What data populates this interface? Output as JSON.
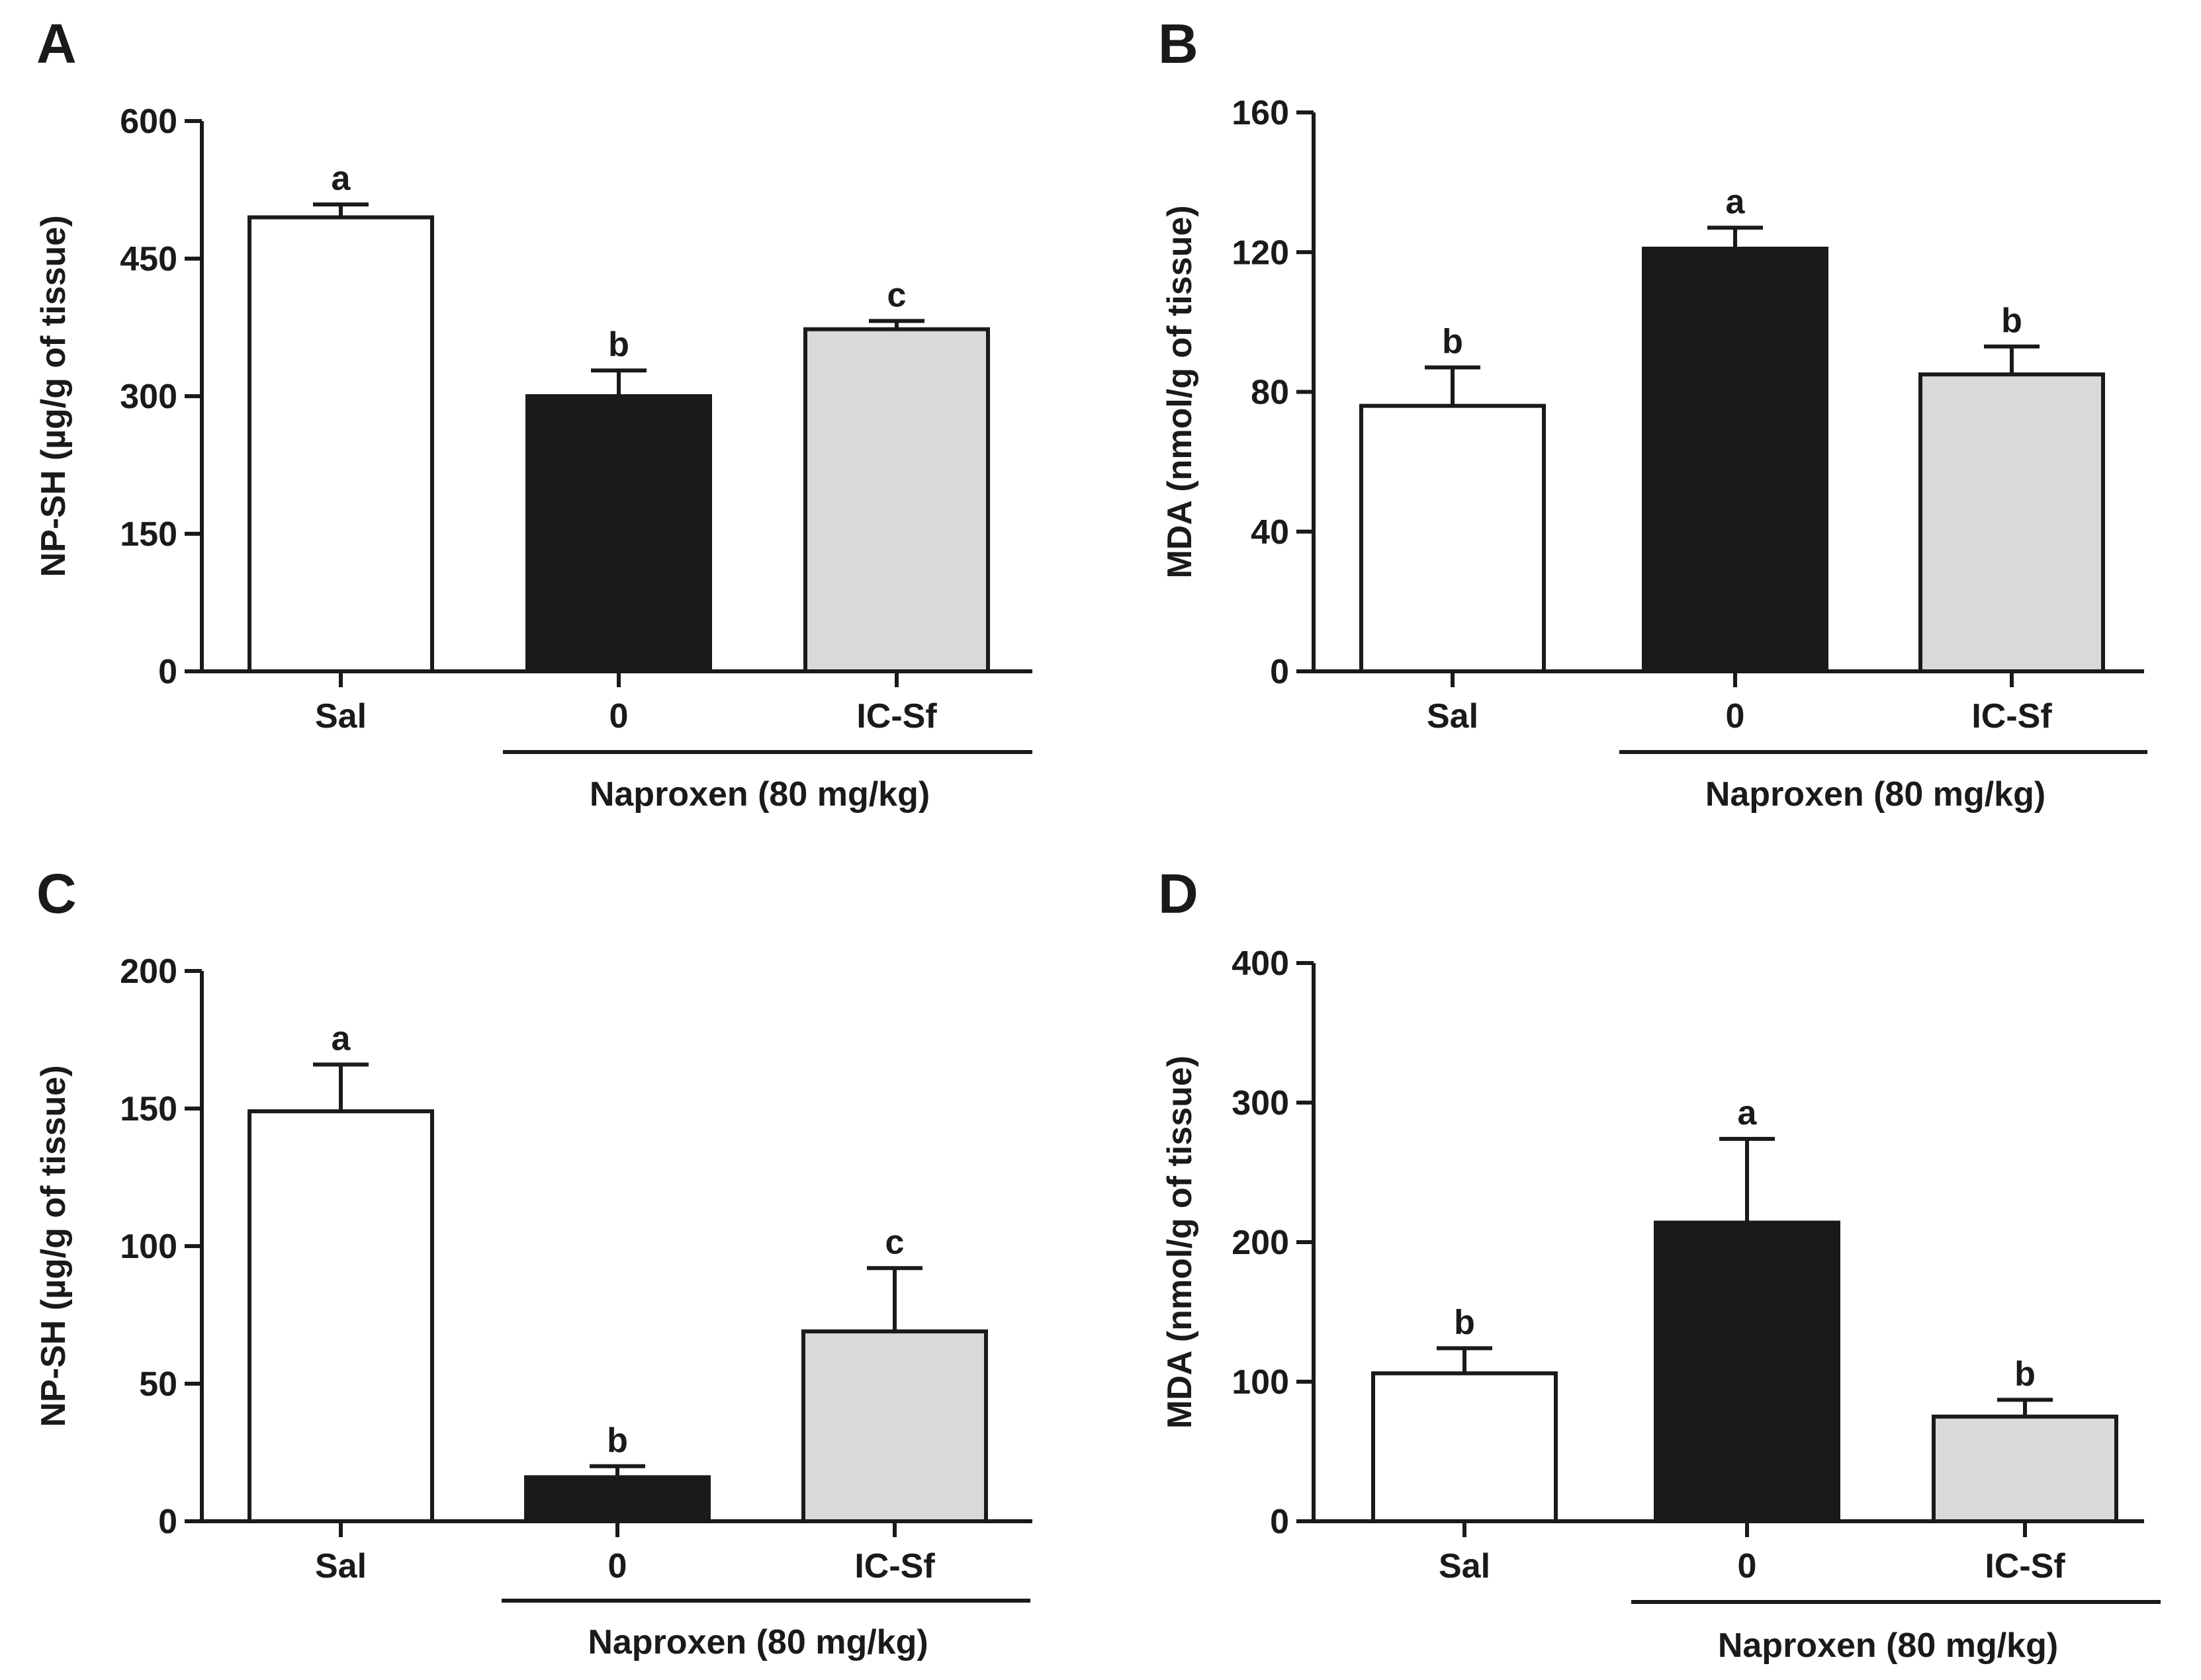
{
  "figure": {
    "group_label": "Naproxen (80 mg/kg)"
  },
  "colors": {
    "Sal": "#ffffff",
    "0": "#1a1a1a",
    "IC-Sf": "#d9d9d9",
    "stroke": "#1a1a1a"
  },
  "chart_data": [
    {
      "panel": "A",
      "type": "bar",
      "ylabel": "NP-SH (µg/g of tissue)",
      "ylim": [
        0,
        600
      ],
      "yticks": [
        0,
        150,
        300,
        450,
        600
      ],
      "categories": [
        "Sal",
        "0",
        "IC-Sf"
      ],
      "values": [
        495,
        300,
        373
      ],
      "errors": [
        14,
        28,
        9
      ],
      "significance": [
        "a",
        "b",
        "c"
      ],
      "group_label": "Naproxen (80 mg/kg)",
      "group_categories": [
        "0",
        "IC-Sf"
      ]
    },
    {
      "panel": "B",
      "type": "bar",
      "ylabel": "MDA (nmol/g of tissue)",
      "ylim": [
        0,
        160
      ],
      "yticks": [
        0,
        40,
        80,
        120,
        160
      ],
      "categories": [
        "Sal",
        "0",
        "IC-Sf"
      ],
      "values": [
        76,
        121,
        85
      ],
      "errors": [
        11,
        6,
        8
      ],
      "significance": [
        "b",
        "a",
        "b"
      ],
      "group_label": "Naproxen (80 mg/kg)",
      "group_categories": [
        "0",
        "IC-Sf"
      ]
    },
    {
      "panel": "C",
      "type": "bar",
      "ylabel": "NP-SH (µg/g of tissue)",
      "ylim": [
        0,
        200
      ],
      "yticks": [
        0,
        50,
        100,
        150,
        200
      ],
      "categories": [
        "Sal",
        "0",
        "IC-Sf"
      ],
      "values": [
        149,
        16,
        69
      ],
      "errors": [
        17,
        4,
        23
      ],
      "significance": [
        "a",
        "b",
        "c"
      ],
      "group_label": "Naproxen (80 mg/kg)",
      "group_categories": [
        "0",
        "IC-Sf"
      ]
    },
    {
      "panel": "D",
      "type": "bar",
      "ylabel": "MDA (nmol/g of tissue)",
      "ylim": [
        0,
        400
      ],
      "yticks": [
        0,
        100,
        200,
        300,
        400
      ],
      "categories": [
        "Sal",
        "0",
        "IC-Sf"
      ],
      "values": [
        106,
        214,
        75
      ],
      "errors": [
        18,
        60,
        12
      ],
      "significance": [
        "b",
        "a",
        "b"
      ],
      "group_label": "Naproxen (80 mg/kg)",
      "group_categories": [
        "0",
        "IC-Sf"
      ]
    }
  ]
}
